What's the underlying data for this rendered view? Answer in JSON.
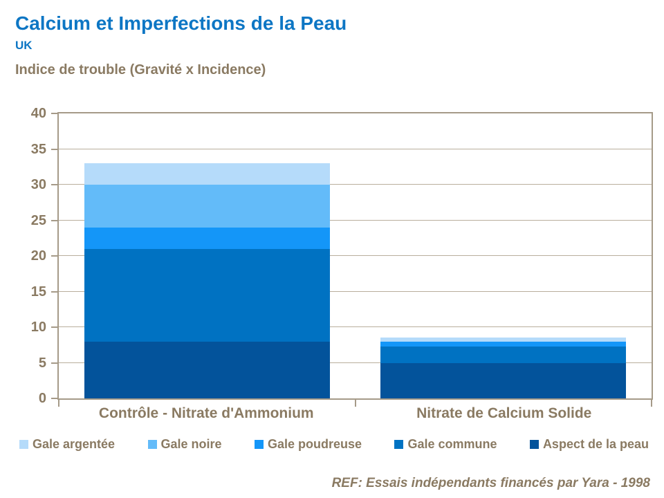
{
  "header": {
    "title": "Calcium et Imperfections de la Peau",
    "subtitle": "UK",
    "axis_title": "Indice de trouble (Gravité x Incidence)"
  },
  "colors": {
    "title_blue": "#0d76c4",
    "label_brown": "#8a7a62",
    "axis_border": "#a59a88",
    "gridline": "#b9ae9c"
  },
  "chart_data": {
    "type": "bar",
    "stacked": true,
    "title": "Calcium et Imperfections de la Peau",
    "ylabel": "Indice de trouble (Gravité x Incidence)",
    "xlabel": "",
    "categories": [
      "Contrôle - Nitrate d'Ammonium",
      "Nitrate de Calcium Solide"
    ],
    "series": [
      {
        "name": "Aspect de la peau",
        "color": "#03539b",
        "values": [
          8,
          5
        ]
      },
      {
        "name": "Gale commune",
        "color": "#0072c2",
        "values": [
          13,
          2.25
        ]
      },
      {
        "name": "Gale poudreuse",
        "color": "#1496f8",
        "values": [
          3,
          0.75
        ]
      },
      {
        "name": "Gale noire",
        "color": "#63bbf9",
        "values": [
          6,
          0
        ]
      },
      {
        "name": "Gale argentée",
        "color": "#b5dbfa",
        "values": [
          3,
          0.5
        ]
      }
    ],
    "totals": [
      33,
      8.5
    ],
    "ylim": [
      0,
      40
    ],
    "yticks": [
      0,
      5,
      10,
      15,
      20,
      25,
      30,
      35,
      40
    ],
    "grid": true,
    "legend_position": "bottom",
    "legend_order": [
      "Gale argentée",
      "Gale noire",
      "Gale poudreuse",
      "Gale commune",
      "Aspect de la peau"
    ]
  },
  "footer": {
    "ref": "REF: Essais indépendants financés par Yara - 1998"
  }
}
